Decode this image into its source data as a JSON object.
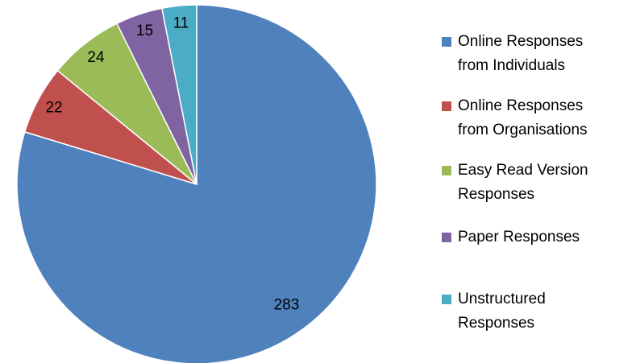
{
  "chart_data": {
    "type": "pie",
    "categories": [
      "Online Responses from Individuals",
      "Online Responses from Organisations",
      "Easy Read Version Responses",
      "Paper Responses",
      "Unstructured Responses"
    ],
    "values": [
      283,
      22,
      24,
      15,
      11
    ],
    "colors": [
      "#4f81bd",
      "#c0504d",
      "#9bbb59",
      "#8064a2",
      "#4bacc6"
    ],
    "legend": "right"
  }
}
